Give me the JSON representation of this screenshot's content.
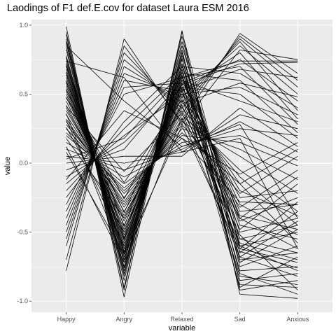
{
  "chart_data": {
    "type": "line",
    "title": "Laodings of F1 def.E.cov for dataset Laura ESM 2016",
    "xlabel": "variable",
    "ylabel": "value",
    "categories": [
      "Happy",
      "Angry",
      "Relaxed",
      "Sad",
      "Anxious"
    ],
    "y_ticks": [
      -1.0,
      -0.5,
      0.0,
      0.5,
      1.0
    ],
    "y_tick_labels": [
      "-1.0",
      "-0.5",
      "0.0",
      "0.5",
      "1.0"
    ],
    "ylim": [
      -1.08,
      1.04
    ],
    "grid": true,
    "legend": "none",
    "colors": {
      "panel_background": "#ebebeb",
      "grid_major": "#ffffff",
      "grid_minor": "#f5f5f5",
      "line": "#000000"
    },
    "series": [
      {
        "values": [
          0.99,
          -0.97,
          0.95,
          -0.62,
          -0.72
        ]
      },
      {
        "values": [
          0.95,
          -0.9,
          0.92,
          -0.75,
          -0.6
        ]
      },
      {
        "values": [
          0.9,
          -0.85,
          0.88,
          -0.7,
          -0.65
        ]
      },
      {
        "values": [
          0.87,
          -0.8,
          0.85,
          -0.55,
          -0.45
        ]
      },
      {
        "values": [
          0.82,
          -0.78,
          0.8,
          -0.6,
          -0.5
        ]
      },
      {
        "values": [
          0.78,
          -0.75,
          0.78,
          -0.5,
          -0.4
        ]
      },
      {
        "values": [
          0.76,
          -0.72,
          0.75,
          -0.45,
          -0.55
        ]
      },
      {
        "values": [
          0.74,
          -0.7,
          0.72,
          -0.65,
          -0.35
        ]
      },
      {
        "values": [
          0.72,
          -0.68,
          0.7,
          -0.4,
          -0.62
        ]
      },
      {
        "values": [
          0.7,
          -0.66,
          0.68,
          -0.72,
          -0.48
        ]
      },
      {
        "values": [
          0.68,
          -0.65,
          0.66,
          -0.35,
          -0.3
        ]
      },
      {
        "values": [
          0.66,
          -0.62,
          0.64,
          -0.58,
          -0.7
        ]
      },
      {
        "values": [
          0.64,
          -0.6,
          0.62,
          -0.42,
          -0.25
        ]
      },
      {
        "values": [
          0.62,
          -0.58,
          0.6,
          -0.3,
          -0.52
        ]
      },
      {
        "values": [
          0.6,
          -0.56,
          0.58,
          -0.68,
          -0.42
        ]
      },
      {
        "values": [
          0.58,
          -0.55,
          0.55,
          -0.25,
          -0.2
        ]
      },
      {
        "values": [
          0.56,
          -0.52,
          0.52,
          -0.55,
          -0.65
        ]
      },
      {
        "values": [
          0.54,
          -0.5,
          0.5,
          -0.2,
          -0.38
        ]
      },
      {
        "values": [
          0.52,
          -0.48,
          0.48,
          -0.48,
          -0.15
        ]
      },
      {
        "values": [
          0.5,
          -0.45,
          0.45,
          -0.15,
          -0.58
        ]
      },
      {
        "values": [
          0.48,
          -0.42,
          0.42,
          -0.62,
          -0.28
        ]
      },
      {
        "values": [
          0.45,
          -0.4,
          0.4,
          -0.1,
          -0.45
        ]
      },
      {
        "values": [
          0.42,
          -0.38,
          0.38,
          -0.4,
          -0.1
        ]
      },
      {
        "values": [
          0.4,
          -0.35,
          0.35,
          -0.05,
          -0.35
        ]
      },
      {
        "values": [
          0.38,
          -0.32,
          0.32,
          -0.32,
          -0.05
        ]
      },
      {
        "values": [
          0.35,
          -0.3,
          0.3,
          0.05,
          -0.22
        ]
      },
      {
        "values": [
          0.32,
          -0.28,
          0.28,
          -0.22,
          0.05
        ]
      },
      {
        "values": [
          0.3,
          -0.25,
          0.25,
          0.1,
          -0.12
        ]
      },
      {
        "values": [
          0.28,
          -0.22,
          0.22,
          -0.15,
          0.1
        ]
      },
      {
        "values": [
          0.25,
          -0.2,
          0.2,
          0.15,
          -0.02
        ]
      },
      {
        "values": [
          0.22,
          -0.18,
          0.18,
          -0.08,
          0.15
        ]
      },
      {
        "values": [
          0.2,
          -0.15,
          0.15,
          0.2,
          0.02
        ]
      },
      {
        "values": [
          0.15,
          -0.1,
          0.12,
          0.25,
          0.2
        ]
      },
      {
        "values": [
          0.1,
          -0.05,
          0.1,
          0.3,
          0.08
        ]
      },
      {
        "values": [
          0.05,
          0.0,
          0.08,
          0.35,
          0.25
        ]
      },
      {
        "values": [
          0.0,
          0.05,
          0.05,
          0.4,
          0.12
        ]
      },
      {
        "values": [
          -0.05,
          0.1,
          0.6,
          0.45,
          0.3
        ]
      },
      {
        "values": [
          -0.1,
          0.15,
          0.55,
          0.5,
          0.18
        ]
      },
      {
        "values": [
          -0.15,
          0.2,
          0.5,
          0.55,
          0.35
        ]
      },
      {
        "values": [
          -0.2,
          0.25,
          0.65,
          0.6,
          0.22
        ]
      },
      {
        "values": [
          -0.25,
          0.3,
          0.7,
          0.65,
          0.4
        ]
      },
      {
        "values": [
          -0.3,
          0.5,
          0.62,
          0.7,
          0.28
        ]
      },
      {
        "values": [
          -0.35,
          0.55,
          0.58,
          0.75,
          0.45
        ]
      },
      {
        "values": [
          -0.4,
          0.6,
          0.52,
          0.8,
          0.32
        ]
      },
      {
        "values": [
          -0.45,
          0.65,
          0.48,
          0.85,
          0.5
        ]
      },
      {
        "values": [
          -0.5,
          0.7,
          0.44,
          0.88,
          0.38
        ]
      },
      {
        "values": [
          -0.55,
          0.75,
          0.4,
          0.9,
          0.55
        ]
      },
      {
        "values": [
          -0.6,
          0.8,
          0.36,
          0.92,
          0.6
        ]
      },
      {
        "values": [
          -0.7,
          0.85,
          0.3,
          0.94,
          0.65
        ]
      },
      {
        "values": [
          -0.78,
          0.9,
          0.28,
          0.82,
          0.75
        ]
      },
      {
        "values": [
          0.93,
          -0.92,
          0.96,
          -0.95,
          -0.98
        ]
      },
      {
        "values": [
          0.88,
          -0.82,
          0.82,
          -0.88,
          -0.9
        ]
      },
      {
        "values": [
          0.84,
          -0.76,
          0.76,
          -0.92,
          -0.85
        ]
      },
      {
        "values": [
          0.77,
          -0.64,
          0.72,
          -0.8,
          -0.95
        ]
      },
      {
        "values": [
          0.71,
          -0.54,
          0.68,
          -0.85,
          -0.8
        ]
      },
      {
        "values": [
          0.65,
          -0.46,
          0.64,
          -0.78,
          -0.75
        ]
      },
      {
        "values": [
          0.59,
          -0.36,
          0.58,
          -0.9,
          -0.68
        ]
      },
      {
        "values": [
          0.53,
          -0.26,
          0.54,
          -0.82,
          -0.88
        ]
      },
      {
        "values": [
          0.47,
          -0.14,
          0.46,
          -0.6,
          -0.78
        ]
      },
      {
        "values": [
          0.41,
          -0.06,
          0.36,
          -0.52,
          -0.92
        ]
      },
      {
        "values": [
          0.36,
          -0.7,
          0.62,
          0.74,
          0.74
        ]
      },
      {
        "values": [
          0.31,
          -0.6,
          0.57,
          0.72,
          0.73
        ]
      },
      {
        "values": [
          0.26,
          -0.5,
          0.53,
          0.68,
          0.62
        ]
      },
      {
        "values": [
          0.18,
          -0.4,
          0.43,
          0.58,
          0.48
        ]
      },
      {
        "values": [
          0.12,
          -0.72,
          0.33,
          -0.68,
          -0.82
        ]
      },
      {
        "values": [
          0.08,
          -0.66,
          0.27,
          -0.64,
          -0.76
        ]
      },
      {
        "values": [
          0.03,
          0.18,
          0.63,
          -0.38,
          -0.48
        ]
      },
      {
        "values": [
          -0.12,
          0.38,
          0.18,
          -0.28,
          -0.3
        ]
      },
      {
        "values": [
          0.85,
          0.45,
          0.12,
          0.28,
          -0.4
        ]
      },
      {
        "values": [
          0.74,
          0.62,
          0.08,
          0.18,
          -0.62
        ]
      }
    ]
  }
}
